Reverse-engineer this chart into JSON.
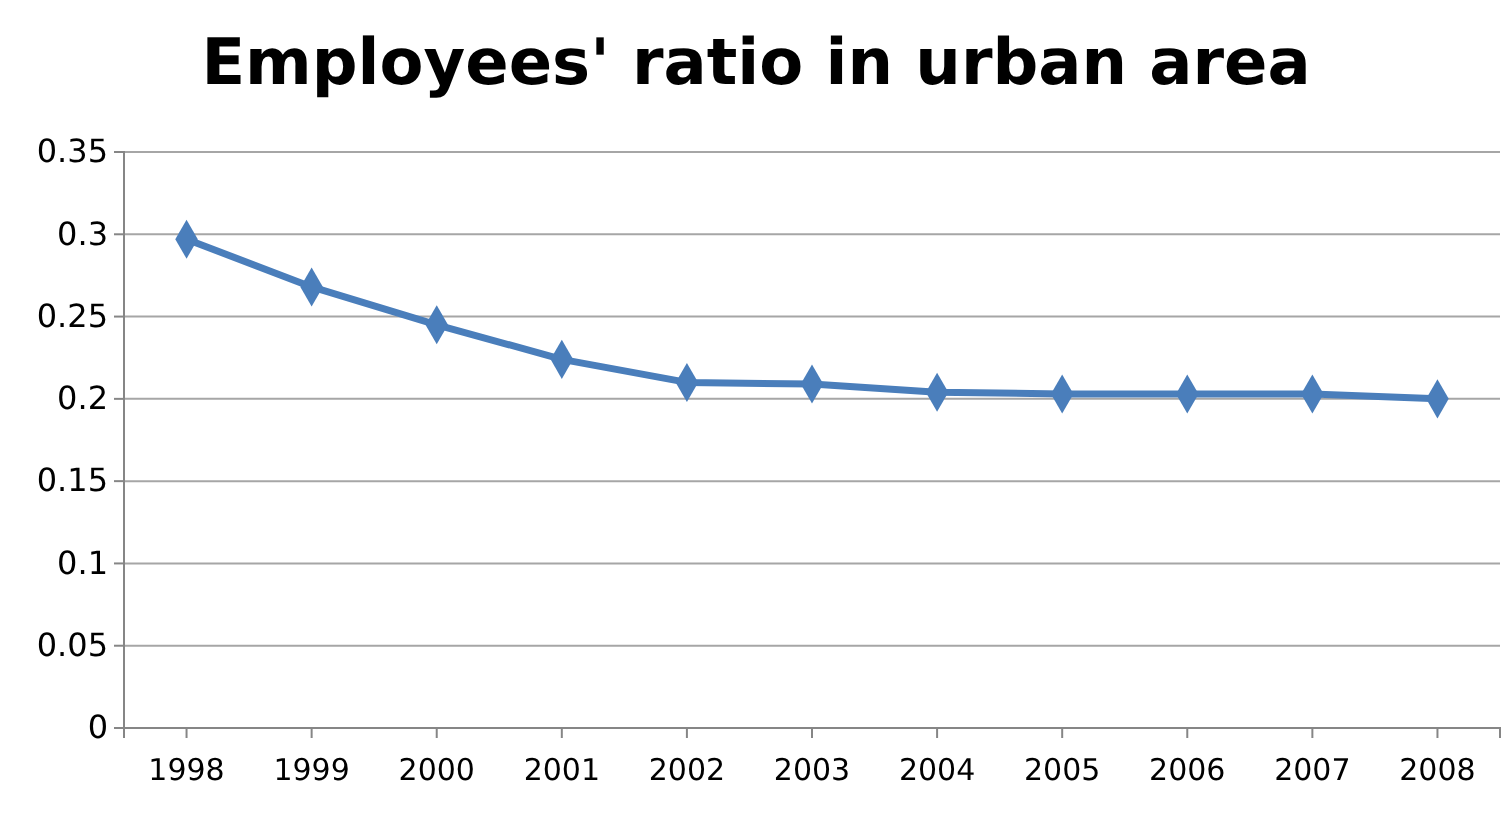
{
  "chart_data": {
    "type": "line",
    "title": "Employees' ratio in urban area",
    "categories": [
      "1998",
      "1999",
      "2000",
      "2001",
      "2002",
      "2003",
      "2004",
      "2005",
      "2006",
      "2007",
      "2008"
    ],
    "series": [
      {
        "color": "#4a7ebb",
        "values": [
          0.297,
          0.268,
          0.245,
          0.224,
          0.21,
          0.209,
          0.204,
          0.203,
          0.203,
          0.203,
          0.2
        ]
      }
    ],
    "ylim": [
      0,
      0.35
    ],
    "yticks": [
      0,
      0.05,
      0.1,
      0.15,
      0.2,
      0.25,
      0.3,
      0.35
    ],
    "grid": "y",
    "marker": "diamond",
    "line_style": "solid"
  }
}
